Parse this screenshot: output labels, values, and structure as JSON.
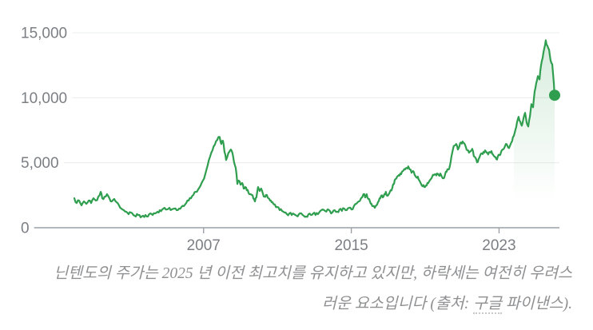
{
  "chart_data": {
    "type": "line",
    "title": "",
    "xlabel": "",
    "ylabel": "",
    "legend": "none",
    "grid": true,
    "line_color": "#2f9e4f",
    "axis_color": "#9aa0a6",
    "gridline_color": "#ebedee",
    "label_color": "#7b7f84",
    "end_marker": true,
    "fill_start_year": 2023.8,
    "x_domain": [
      2000,
      2026.01
    ],
    "y_domain": [
      0,
      15030
    ],
    "x_ticks": [
      {
        "label": "2007",
        "year": 2007
      },
      {
        "label": "2015",
        "year": 2015
      },
      {
        "label": "2023",
        "year": 2023
      }
    ],
    "y_ticks": [
      {
        "label": "15,000",
        "value": 15000
      },
      {
        "label": "10,000",
        "value": 10000
      },
      {
        "label": "5,000",
        "value": 5000
      },
      {
        "label": "0",
        "value": 0
      }
    ],
    "series": [
      {
        "name": "stock-price",
        "points": [
          [
            2000.0,
            2270
          ],
          [
            2000.13,
            1900
          ],
          [
            2000.26,
            2090
          ],
          [
            2000.39,
            1720
          ],
          [
            2000.52,
            2020
          ],
          [
            2000.65,
            1840
          ],
          [
            2000.78,
            2090
          ],
          [
            2000.91,
            1900
          ],
          [
            2001.04,
            2270
          ],
          [
            2001.17,
            2090
          ],
          [
            2001.3,
            2390
          ],
          [
            2001.43,
            2760
          ],
          [
            2001.51,
            2270
          ],
          [
            2001.64,
            2390
          ],
          [
            2001.77,
            2580
          ],
          [
            2001.9,
            2270
          ],
          [
            2002.03,
            2020
          ],
          [
            2002.16,
            2210
          ],
          [
            2002.29,
            1960
          ],
          [
            2002.42,
            1720
          ],
          [
            2002.55,
            1470
          ],
          [
            2002.68,
            1350
          ],
          [
            2002.81,
            1230
          ],
          [
            2002.94,
            1040
          ],
          [
            2003.07,
            1170
          ],
          [
            2003.2,
            980
          ],
          [
            2003.33,
            860
          ],
          [
            2003.46,
            980
          ],
          [
            2003.59,
            800
          ],
          [
            2003.72,
            920
          ],
          [
            2003.85,
            980
          ],
          [
            2003.98,
            860
          ],
          [
            2004.11,
            1100
          ],
          [
            2004.24,
            980
          ],
          [
            2004.37,
            1100
          ],
          [
            2004.5,
            1230
          ],
          [
            2004.63,
            1350
          ],
          [
            2004.76,
            1410
          ],
          [
            2004.89,
            1530
          ],
          [
            2005.02,
            1410
          ],
          [
            2005.15,
            1530
          ],
          [
            2005.28,
            1410
          ],
          [
            2005.41,
            1470
          ],
          [
            2005.54,
            1350
          ],
          [
            2005.67,
            1470
          ],
          [
            2005.8,
            1600
          ],
          [
            2005.93,
            1660
          ],
          [
            2006.06,
            1900
          ],
          [
            2006.19,
            2090
          ],
          [
            2006.32,
            2270
          ],
          [
            2006.45,
            2520
          ],
          [
            2006.58,
            2760
          ],
          [
            2006.71,
            2950
          ],
          [
            2006.84,
            3250
          ],
          [
            2006.96,
            3620
          ],
          [
            2007.09,
            4110
          ],
          [
            2007.22,
            4790
          ],
          [
            2007.35,
            5460
          ],
          [
            2007.48,
            5950
          ],
          [
            2007.61,
            6380
          ],
          [
            2007.74,
            6750
          ],
          [
            2007.87,
            6990
          ],
          [
            2007.96,
            6440
          ],
          [
            2008.05,
            6690
          ],
          [
            2008.13,
            5830
          ],
          [
            2008.22,
            5210
          ],
          [
            2008.31,
            5580
          ],
          [
            2008.39,
            5830
          ],
          [
            2008.48,
            6010
          ],
          [
            2008.57,
            5710
          ],
          [
            2008.65,
            5030
          ],
          [
            2008.74,
            4600
          ],
          [
            2008.83,
            3370
          ],
          [
            2008.91,
            3620
          ],
          [
            2009.0,
            3310
          ],
          [
            2009.09,
            3440
          ],
          [
            2009.17,
            3010
          ],
          [
            2009.26,
            3130
          ],
          [
            2009.34,
            2880
          ],
          [
            2009.43,
            2700
          ],
          [
            2009.52,
            2580
          ],
          [
            2009.61,
            2520
          ],
          [
            2009.69,
            2270
          ],
          [
            2009.78,
            2020
          ],
          [
            2009.86,
            2330
          ],
          [
            2009.95,
            3130
          ],
          [
            2010.04,
            2820
          ],
          [
            2010.12,
            3010
          ],
          [
            2010.21,
            2640
          ],
          [
            2010.3,
            2390
          ],
          [
            2010.38,
            2520
          ],
          [
            2010.47,
            2330
          ],
          [
            2010.56,
            2210
          ],
          [
            2010.64,
            2090
          ],
          [
            2010.73,
            1960
          ],
          [
            2010.86,
            1780
          ],
          [
            2010.99,
            1600
          ],
          [
            2011.12,
            1350
          ],
          [
            2011.25,
            1290
          ],
          [
            2011.38,
            1170
          ],
          [
            2011.51,
            1040
          ],
          [
            2011.64,
            1100
          ],
          [
            2011.77,
            980
          ],
          [
            2011.9,
            1040
          ],
          [
            2012.03,
            920
          ],
          [
            2012.16,
            1040
          ],
          [
            2012.29,
            1100
          ],
          [
            2012.42,
            920
          ],
          [
            2012.55,
            860
          ],
          [
            2012.68,
            1040
          ],
          [
            2012.81,
            980
          ],
          [
            2012.94,
            1100
          ],
          [
            2013.06,
            980
          ],
          [
            2013.19,
            1040
          ],
          [
            2013.32,
            1290
          ],
          [
            2013.45,
            1410
          ],
          [
            2013.58,
            1290
          ],
          [
            2013.71,
            1410
          ],
          [
            2013.84,
            1290
          ],
          [
            2013.97,
            1170
          ],
          [
            2014.1,
            1350
          ],
          [
            2014.23,
            1230
          ],
          [
            2014.36,
            1410
          ],
          [
            2014.49,
            1290
          ],
          [
            2014.62,
            1470
          ],
          [
            2014.75,
            1350
          ],
          [
            2014.88,
            1530
          ],
          [
            2015.01,
            1410
          ],
          [
            2015.14,
            1660
          ],
          [
            2015.27,
            1840
          ],
          [
            2015.4,
            2020
          ],
          [
            2015.53,
            2270
          ],
          [
            2015.66,
            2580
          ],
          [
            2015.75,
            2330
          ],
          [
            2015.83,
            2580
          ],
          [
            2015.92,
            2210
          ],
          [
            2016.01,
            2020
          ],
          [
            2016.09,
            1840
          ],
          [
            2016.18,
            1660
          ],
          [
            2016.27,
            1530
          ],
          [
            2016.35,
            1720
          ],
          [
            2016.44,
            1960
          ],
          [
            2016.53,
            2270
          ],
          [
            2016.61,
            2450
          ],
          [
            2016.7,
            2330
          ],
          [
            2016.79,
            2580
          ],
          [
            2016.87,
            2760
          ],
          [
            2016.96,
            2450
          ],
          [
            2017.05,
            2640
          ],
          [
            2017.13,
            2880
          ],
          [
            2017.22,
            3070
          ],
          [
            2017.31,
            3370
          ],
          [
            2017.39,
            3740
          ],
          [
            2017.48,
            3930
          ],
          [
            2017.57,
            4050
          ],
          [
            2017.65,
            4170
          ],
          [
            2017.74,
            4300
          ],
          [
            2017.83,
            4420
          ],
          [
            2017.91,
            4480
          ],
          [
            2018.0,
            4600
          ],
          [
            2018.08,
            4720
          ],
          [
            2018.17,
            4480
          ],
          [
            2018.26,
            4230
          ],
          [
            2018.34,
            4360
          ],
          [
            2018.43,
            4050
          ],
          [
            2018.52,
            3870
          ],
          [
            2018.6,
            3930
          ],
          [
            2018.69,
            3620
          ],
          [
            2018.78,
            3370
          ],
          [
            2018.86,
            3190
          ],
          [
            2018.95,
            3130
          ],
          [
            2019.04,
            3250
          ],
          [
            2019.12,
            3440
          ],
          [
            2019.21,
            3560
          ],
          [
            2019.3,
            3740
          ],
          [
            2019.38,
            3930
          ],
          [
            2019.47,
            4050
          ],
          [
            2019.56,
            4110
          ],
          [
            2019.64,
            4170
          ],
          [
            2019.73,
            4050
          ],
          [
            2019.82,
            4170
          ],
          [
            2019.9,
            3930
          ],
          [
            2019.99,
            3800
          ],
          [
            2020.07,
            4050
          ],
          [
            2020.16,
            4300
          ],
          [
            2020.25,
            4480
          ],
          [
            2020.33,
            4720
          ],
          [
            2020.42,
            5460
          ],
          [
            2020.51,
            6070
          ],
          [
            2020.59,
            6320
          ],
          [
            2020.68,
            6440
          ],
          [
            2020.77,
            6010
          ],
          [
            2020.85,
            6260
          ],
          [
            2020.94,
            6560
          ],
          [
            2021.03,
            6630
          ],
          [
            2021.11,
            6500
          ],
          [
            2021.2,
            6200
          ],
          [
            2021.29,
            5950
          ],
          [
            2021.37,
            5770
          ],
          [
            2021.46,
            5890
          ],
          [
            2021.55,
            6070
          ],
          [
            2021.63,
            5520
          ],
          [
            2021.72,
            5400
          ],
          [
            2021.81,
            5030
          ],
          [
            2021.89,
            5280
          ],
          [
            2021.98,
            5580
          ],
          [
            2022.07,
            5710
          ],
          [
            2022.15,
            5830
          ],
          [
            2022.24,
            5950
          ],
          [
            2022.33,
            5770
          ],
          [
            2022.41,
            5640
          ],
          [
            2022.5,
            5830
          ],
          [
            2022.59,
            5890
          ],
          [
            2022.67,
            5640
          ],
          [
            2022.76,
            5460
          ],
          [
            2022.85,
            5280
          ],
          [
            2022.93,
            5460
          ],
          [
            2023.02,
            5580
          ],
          [
            2023.11,
            5830
          ],
          [
            2023.19,
            6010
          ],
          [
            2023.28,
            6130
          ],
          [
            2023.37,
            6440
          ],
          [
            2023.45,
            6320
          ],
          [
            2023.54,
            6130
          ],
          [
            2023.63,
            6440
          ],
          [
            2023.71,
            6690
          ],
          [
            2023.8,
            7060
          ],
          [
            2023.89,
            7550
          ],
          [
            2023.97,
            8100
          ],
          [
            2024.06,
            8530
          ],
          [
            2024.15,
            8160
          ],
          [
            2024.23,
            7850
          ],
          [
            2024.32,
            8410
          ],
          [
            2024.41,
            8840
          ],
          [
            2024.49,
            8100
          ],
          [
            2024.58,
            7790
          ],
          [
            2024.67,
            8530
          ],
          [
            2024.75,
            9510
          ],
          [
            2024.84,
            9270
          ],
          [
            2024.93,
            10490
          ],
          [
            2025.01,
            11110
          ],
          [
            2025.1,
            11660
          ],
          [
            2025.19,
            11410
          ],
          [
            2025.27,
            12460
          ],
          [
            2025.36,
            13070
          ],
          [
            2025.45,
            13810
          ],
          [
            2025.53,
            14420
          ],
          [
            2025.62,
            13990
          ],
          [
            2025.71,
            13680
          ],
          [
            2025.79,
            12880
          ],
          [
            2025.88,
            12580
          ],
          [
            2025.97,
            11050
          ],
          [
            2026.01,
            10190
          ]
        ]
      }
    ]
  },
  "caption": {
    "line1": "닌텐도의 주가는 2025 년 이전 최고치를 유지하고 있지만, 하락세는 여전히 우려스",
    "line2_pre": "러운 요소입니다 (출처: ",
    "line2_link": "구글",
    "line2_post": " 파이낸스)."
  }
}
